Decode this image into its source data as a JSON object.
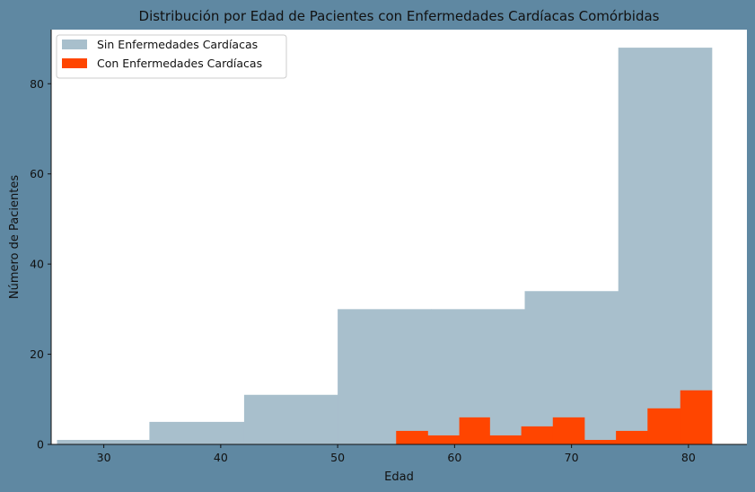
{
  "chart_data": {
    "type": "bar",
    "title": "Distribución por Edad de Pacientes con Enfermedades Cardíacas Comórbidas",
    "xlabel": "Edad",
    "ylabel": "Número de Pacientes",
    "xlim": [
      25.5,
      85
    ],
    "ylim": [
      0,
      92
    ],
    "xticks": [
      30,
      40,
      50,
      60,
      70,
      80
    ],
    "yticks": [
      0,
      20,
      40,
      60,
      80
    ],
    "legend_position": "top-left",
    "series": [
      {
        "name": "Sin Enfermedades Cardíacas",
        "color": "#a8bfcc",
        "bins": [
          {
            "x0": 26.0,
            "x1": 33.9,
            "value": 1
          },
          {
            "x0": 33.9,
            "x1": 42.0,
            "value": 5
          },
          {
            "x0": 42.0,
            "x1": 50.0,
            "value": 11
          },
          {
            "x0": 50.0,
            "x1": 58.0,
            "value": 30
          },
          {
            "x0": 58.0,
            "x1": 66.0,
            "value": 30
          },
          {
            "x0": 66.0,
            "x1": 74.0,
            "value": 34
          },
          {
            "x0": 74.0,
            "x1": 82.0,
            "value": 88
          }
        ]
      },
      {
        "name": "Con Enfermedades Cardíacas",
        "color": "#ff4500",
        "bins": [
          {
            "x0": 55.0,
            "x1": 57.7,
            "value": 3
          },
          {
            "x0": 57.7,
            "x1": 60.4,
            "value": 2
          },
          {
            "x0": 60.4,
            "x1": 63.0,
            "value": 6
          },
          {
            "x0": 63.0,
            "x1": 65.7,
            "value": 2
          },
          {
            "x0": 65.7,
            "x1": 68.4,
            "value": 4
          },
          {
            "x0": 68.4,
            "x1": 71.1,
            "value": 6
          },
          {
            "x0": 71.1,
            "x1": 73.8,
            "value": 1
          },
          {
            "x0": 73.8,
            "x1": 76.5,
            "value": 3
          },
          {
            "x0": 76.5,
            "x1": 79.3,
            "value": 8
          },
          {
            "x0": 79.3,
            "x1": 82.0,
            "value": 12
          }
        ]
      }
    ]
  }
}
